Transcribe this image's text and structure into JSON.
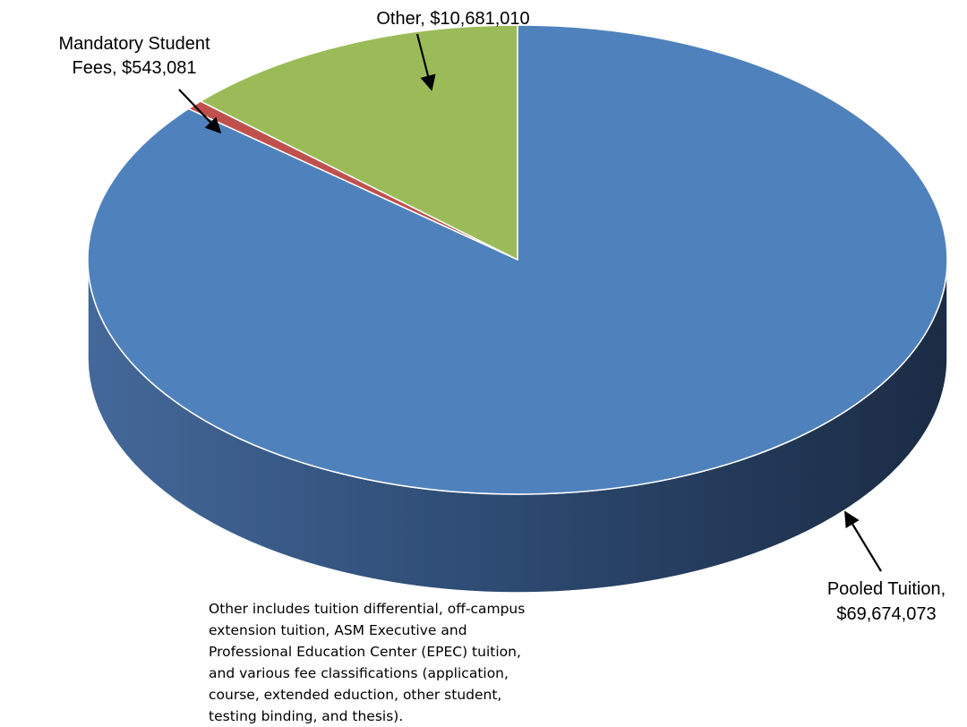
{
  "chart_data": {
    "type": "pie",
    "style": "3d",
    "slices": [
      {
        "name": "Pooled Tuition",
        "value": 69674073,
        "value_label": "$69,674,073",
        "color": "#4f81bd"
      },
      {
        "name": "Mandatory Student Fees",
        "value": 543081,
        "value_label": "$543,081",
        "color": "#c0504d"
      },
      {
        "name": "Other",
        "value": 10681010,
        "value_label": "$10,681,010",
        "color": "#9bbb59"
      }
    ],
    "labels": {
      "other": "Other, $10,681,010",
      "mandatory_line1": "Mandatory Student",
      "mandatory_line2": "Fees, $543,081",
      "pooled_line1": "Pooled Tuition,",
      "pooled_line2": "$69,674,073"
    }
  },
  "footnote": "Other includes tuition differential, off-campus extension tuition, ASM Executive and Professional Education Center (EPEC) tuition, and various fee classifications (application, course, extended eduction, other student, testing binding, and thesis)."
}
